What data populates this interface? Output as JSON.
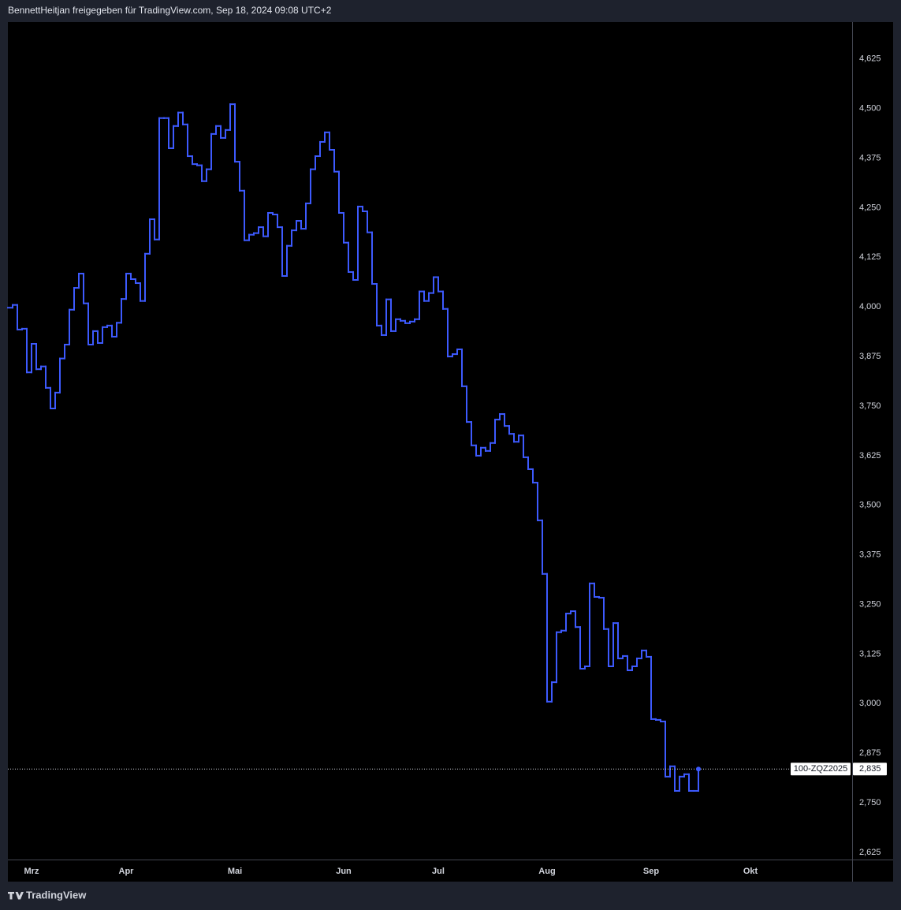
{
  "header": {
    "text": "BennettHeitjan freigegeben für TradingView.com, Sep 18, 2024 09:08 UTC+2"
  },
  "footer": {
    "brand": "TradingView"
  },
  "chart_data": {
    "type": "line",
    "step": true,
    "color": "#3d5afe",
    "symbol": "100-ZQZ2025",
    "last_value_label": "2,835",
    "x": [
      0,
      1,
      2,
      3,
      4,
      5,
      6,
      7,
      8,
      9,
      10,
      11,
      12,
      13,
      14,
      15,
      16,
      17,
      18,
      19,
      20,
      21,
      22,
      23,
      24,
      25,
      26,
      27,
      28,
      29,
      30,
      31,
      32,
      33,
      34,
      35,
      36,
      37,
      38,
      39,
      40,
      41,
      42,
      43,
      44,
      45,
      46,
      47,
      48,
      49,
      50,
      51,
      52,
      53,
      54,
      55,
      56,
      57,
      58,
      59,
      60,
      61,
      62,
      63,
      64,
      65,
      66,
      67,
      68,
      69,
      70,
      71,
      72,
      73,
      74,
      75,
      76,
      77,
      78,
      79,
      80,
      81,
      82,
      83,
      84,
      85,
      86,
      87,
      88,
      89,
      90,
      91,
      92,
      93,
      94,
      95,
      96,
      97,
      98,
      99,
      100,
      101,
      102,
      103,
      104,
      105,
      106,
      107,
      108,
      109,
      110,
      111,
      112,
      113,
      114,
      115,
      116,
      117,
      118,
      119,
      120,
      121,
      122,
      123,
      124,
      125,
      126,
      127,
      128,
      129,
      130,
      131,
      132,
      133,
      134,
      135,
      136,
      137,
      138,
      139,
      140,
      141,
      142,
      143,
      144,
      145,
      146
    ],
    "values": [
      3998,
      4005,
      3943,
      3945,
      3835,
      3907,
      3843,
      3850,
      3796,
      3744,
      3784,
      3870,
      3905,
      3993,
      4048,
      4084,
      4009,
      3905,
      3939,
      3909,
      3949,
      3953,
      3925,
      3960,
      4020,
      4084,
      4070,
      4060,
      4015,
      4134,
      4221,
      4170,
      4476,
      4476,
      4400,
      4456,
      4490,
      4460,
      4380,
      4360,
      4357,
      4317,
      4347,
      4436,
      4456,
      4426,
      4446,
      4511,
      4366,
      4293,
      4168,
      4182,
      4186,
      4201,
      4178,
      4237,
      4233,
      4201,
      4078,
      4154,
      4193,
      4217,
      4197,
      4261,
      4347,
      4380,
      4416,
      4440,
      4396,
      4341,
      4237,
      4162,
      4088,
      4068,
      4253,
      4241,
      4188,
      4058,
      3953,
      3929,
      4019,
      3939,
      3969,
      3965,
      3959,
      3963,
      3969,
      4039,
      4015,
      4035,
      4075,
      4039,
      3995,
      3875,
      3881,
      3893,
      3800,
      3710,
      3651,
      3625,
      3645,
      3637,
      3657,
      3716,
      3730,
      3700,
      3680,
      3660,
      3676,
      3621,
      3591,
      3557,
      3462,
      3327,
      3005,
      3054,
      3180,
      3184,
      3227,
      3233,
      3193,
      3088,
      3094,
      3303,
      3269,
      3267,
      3188,
      3094,
      3203,
      3114,
      3120,
      3084,
      3094,
      3114,
      3134,
      3118,
      2961,
      2959,
      2955,
      2816,
      2842,
      2780,
      2816,
      2822,
      2780,
      2780,
      2835
    ],
    "xlim": [
      0,
      178.5
    ],
    "xticks": [
      {
        "value": 5,
        "label": "Mrz"
      },
      {
        "value": 25,
        "label": "Apr"
      },
      {
        "value": 48,
        "label": "Mai"
      },
      {
        "value": 71,
        "label": "Jun"
      },
      {
        "value": 91,
        "label": "Jul"
      },
      {
        "value": 114,
        "label": "Aug"
      },
      {
        "value": 136,
        "label": "Sep"
      },
      {
        "value": 157,
        "label": "Okt"
      }
    ],
    "ylim": [
      2607,
      4718
    ],
    "yticks": [
      {
        "value": 2625,
        "label": "2,625"
      },
      {
        "value": 2750,
        "label": "2,750"
      },
      {
        "value": 2875,
        "label": "2,875"
      },
      {
        "value": 3000,
        "label": "3,000"
      },
      {
        "value": 3125,
        "label": "3,125"
      },
      {
        "value": 3250,
        "label": "3,250"
      },
      {
        "value": 3375,
        "label": "3,375"
      },
      {
        "value": 3500,
        "label": "3,500"
      },
      {
        "value": 3625,
        "label": "3,625"
      },
      {
        "value": 3750,
        "label": "3,750"
      },
      {
        "value": 3875,
        "label": "3,875"
      },
      {
        "value": 4000,
        "label": "4,000"
      },
      {
        "value": 4125,
        "label": "4,125"
      },
      {
        "value": 4250,
        "label": "4,250"
      },
      {
        "value": 4375,
        "label": "4,375"
      },
      {
        "value": 4500,
        "label": "4,500"
      },
      {
        "value": 4625,
        "label": "4,625"
      }
    ],
    "grid": false
  }
}
